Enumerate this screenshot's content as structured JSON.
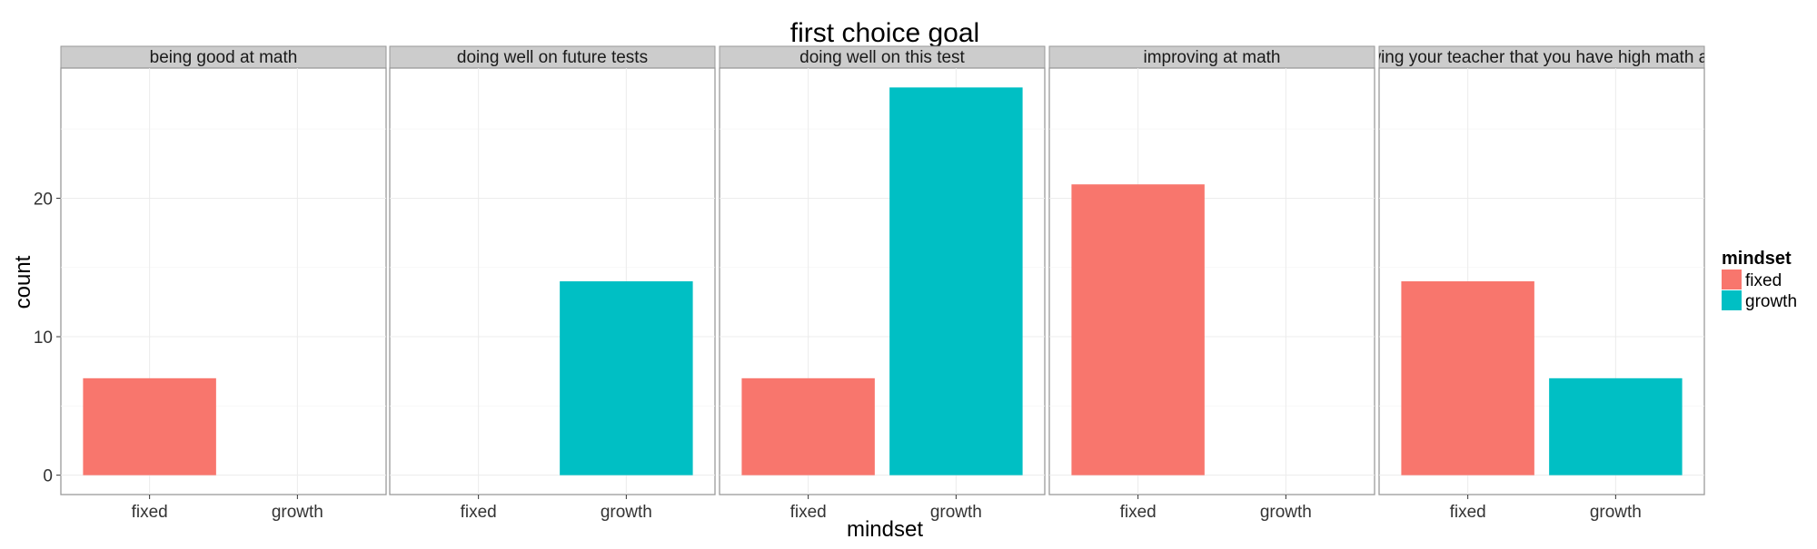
{
  "chart_data": {
    "type": "bar",
    "title": "first choice goal",
    "xlabel": "mindset",
    "ylabel": "count",
    "categories": [
      "fixed",
      "growth"
    ],
    "ylim": [
      -1.4,
      29.4
    ],
    "yticks": [
      0,
      10,
      20
    ],
    "grid": true,
    "legend": {
      "title": "mindset",
      "placement": "right",
      "entries": [
        {
          "label": "fixed",
          "color": "#F8766D"
        },
        {
          "label": "growth",
          "color": "#00BFC4"
        }
      ]
    },
    "facets": [
      {
        "label": "being good at math",
        "values": [
          7,
          0
        ]
      },
      {
        "label": "doing well on future tests",
        "values": [
          0,
          14
        ]
      },
      {
        "label": "doing well on this test",
        "values": [
          7,
          28
        ]
      },
      {
        "label": "improving at math",
        "values": [
          21,
          0
        ]
      },
      {
        "label": "showing your teacher that you have high math ability",
        "values": [
          14,
          7
        ]
      }
    ]
  }
}
